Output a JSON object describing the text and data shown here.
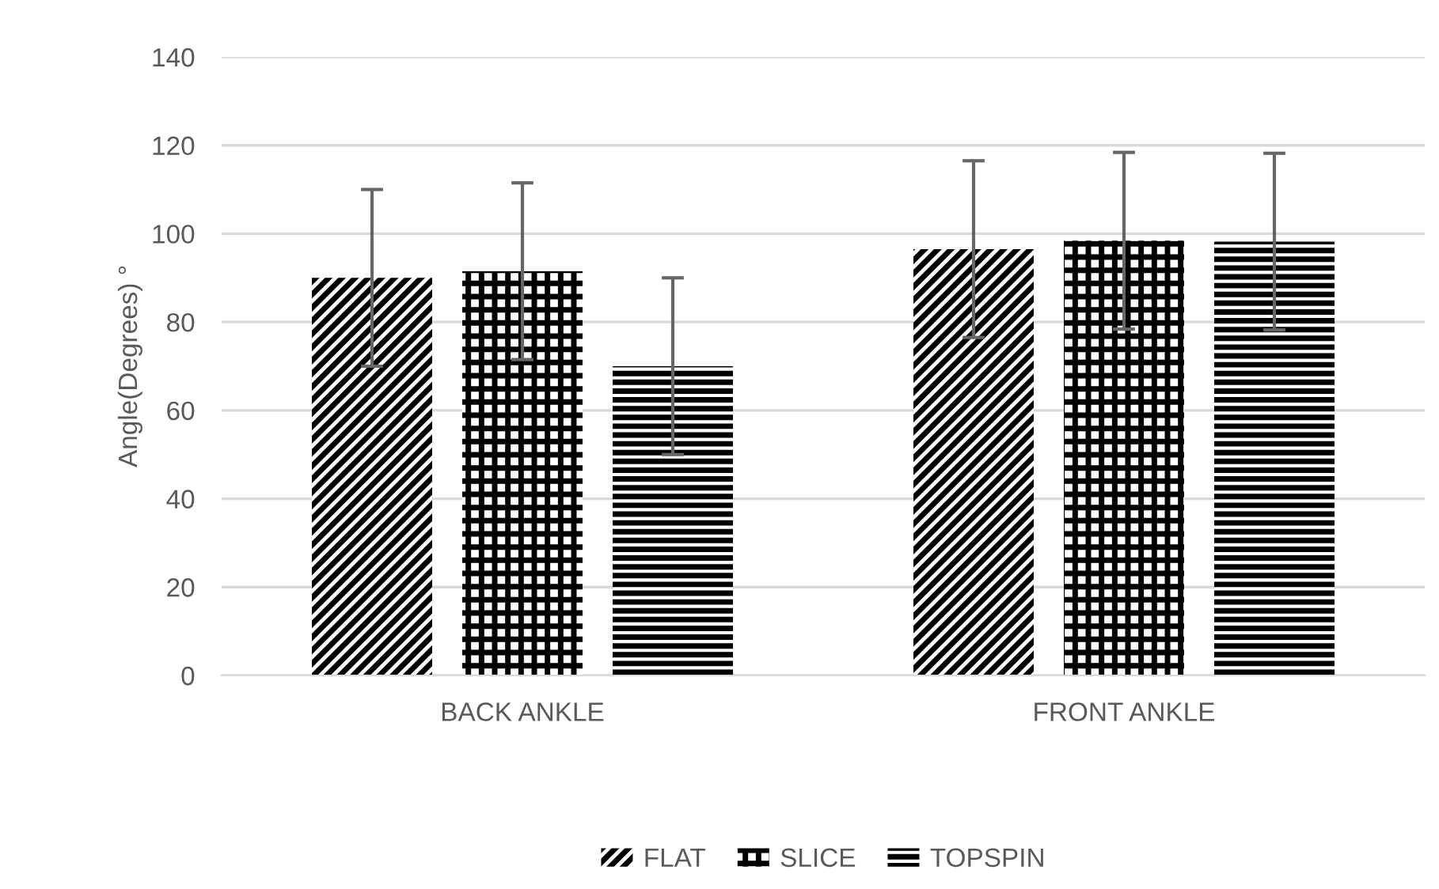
{
  "chart_data": {
    "type": "bar",
    "ylabel": "Angle(Degrees) °",
    "categories": [
      "BACK ANKLE",
      "FRONT ANKLE"
    ],
    "series": [
      {
        "name": "FLAT",
        "color": "#000000",
        "values": [
          90.0,
          96.5
        ],
        "errors": [
          20,
          20
        ]
      },
      {
        "name": "SLICE",
        "color": "#000000",
        "values": [
          91.5,
          98.4
        ],
        "errors": [
          20,
          20
        ]
      },
      {
        "name": "TOPSPIN",
        "color": "#000000",
        "values": [
          70.0,
          98.2
        ],
        "errors": [
          20,
          20
        ]
      }
    ],
    "ylim": [
      0,
      140
    ],
    "yticks": [
      0,
      20,
      40,
      60,
      80,
      100,
      120,
      140
    ],
    "grid": "y",
    "legend": "bottom"
  }
}
